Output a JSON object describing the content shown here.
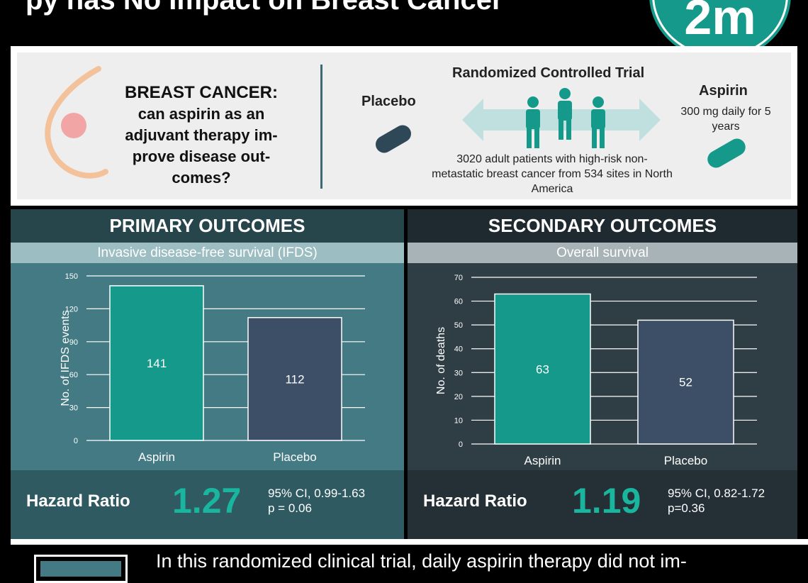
{
  "header": {
    "title": "py has No Impact on Breast Cancer",
    "logo": "2m"
  },
  "intro": {
    "question_title": "BREAST CANCER:",
    "question_body": "can aspirin as an adjuvant therapy im-prove disease out-comes?",
    "placebo_label": "Placebo",
    "trial_label": "Randomized Controlled Trial",
    "aspirin_label": "Aspirin",
    "aspirin_dose": "300 mg daily for 5 years",
    "population": "3020 adult patients with high-risk non-metastatic breast cancer from 534 sites in North America",
    "colors": {
      "placebo_pill": "#2f4858",
      "aspirin_pill": "#14998a",
      "people": "#14998a",
      "arrow": "#bfe0df"
    }
  },
  "primary": {
    "title": "PRIMARY OUTCOMES",
    "subtitle": "Invasive disease-free survival (IFDS)",
    "hr_label": "Hazard Ratio",
    "hr_value": "1.27",
    "ci": "95% CI, 0.99-1.63",
    "p": "p = 0.06"
  },
  "secondary": {
    "title": "SECONDARY OUTCOMES",
    "subtitle": "Overall survival",
    "hr_label": "Hazard Ratio",
    "hr_value": "1.19",
    "ci": "95% CI, 0.82-1.72",
    "p": "p=0.36"
  },
  "chart_data": [
    {
      "type": "bar",
      "categories": [
        "Aspirin",
        "Placebo"
      ],
      "values": [
        141,
        112
      ],
      "ylabel": "No. of IFDS events",
      "ylim": [
        0,
        150
      ],
      "yticks": [
        0,
        30,
        60,
        90,
        120,
        150
      ],
      "grid": true,
      "colors": [
        "#14998a",
        "#3d4f66"
      ]
    },
    {
      "type": "bar",
      "categories": [
        "Aspirin",
        "Placebo"
      ],
      "values": [
        63,
        52
      ],
      "ylabel": "No. of deaths",
      "ylim": [
        0,
        70
      ],
      "yticks": [
        0,
        10,
        20,
        30,
        40,
        50,
        60,
        70
      ],
      "grid": true,
      "colors": [
        "#14998a",
        "#3d4f66"
      ]
    }
  ],
  "conclusion": {
    "text": "In this randomized clinical trial, daily aspirin therapy did not im-"
  }
}
